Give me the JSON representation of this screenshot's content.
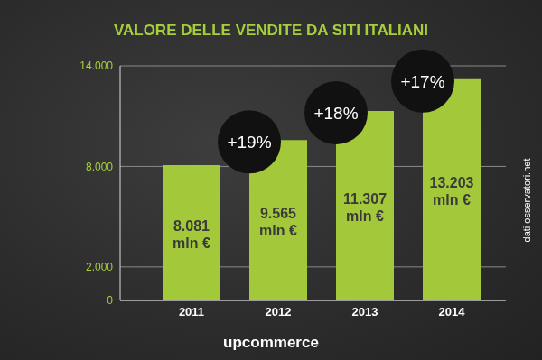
{
  "chart_data": {
    "type": "bar",
    "title": "VALORE DELLE VENDITE DA SITI ITALIANI",
    "categories": [
      "2011",
      "2012",
      "2013",
      "2014"
    ],
    "values": [
      8081,
      9565,
      11307,
      13203
    ],
    "value_labels": [
      "8.081 mln €",
      "9.565 mln €",
      "11.307 mln €",
      "13.203 mln €"
    ],
    "data_labels": true,
    "color": "#a3c839",
    "ylim": [
      0,
      14000
    ],
    "yticks": [
      0,
      {
        "value": 2000,
        "label": "2.000"
      },
      {
        "value": 8000,
        "label": "8.000"
      },
      {
        "value": 14000,
        "label": "14.000"
      }
    ],
    "grid": true,
    "annotations": [
      {
        "category": "2012",
        "text": "+19%"
      },
      {
        "category": "2013",
        "text": "+18%"
      },
      {
        "category": "2014",
        "text": "+17%"
      }
    ],
    "source": "dati osservatori.net",
    "logo": "upcommerce"
  }
}
